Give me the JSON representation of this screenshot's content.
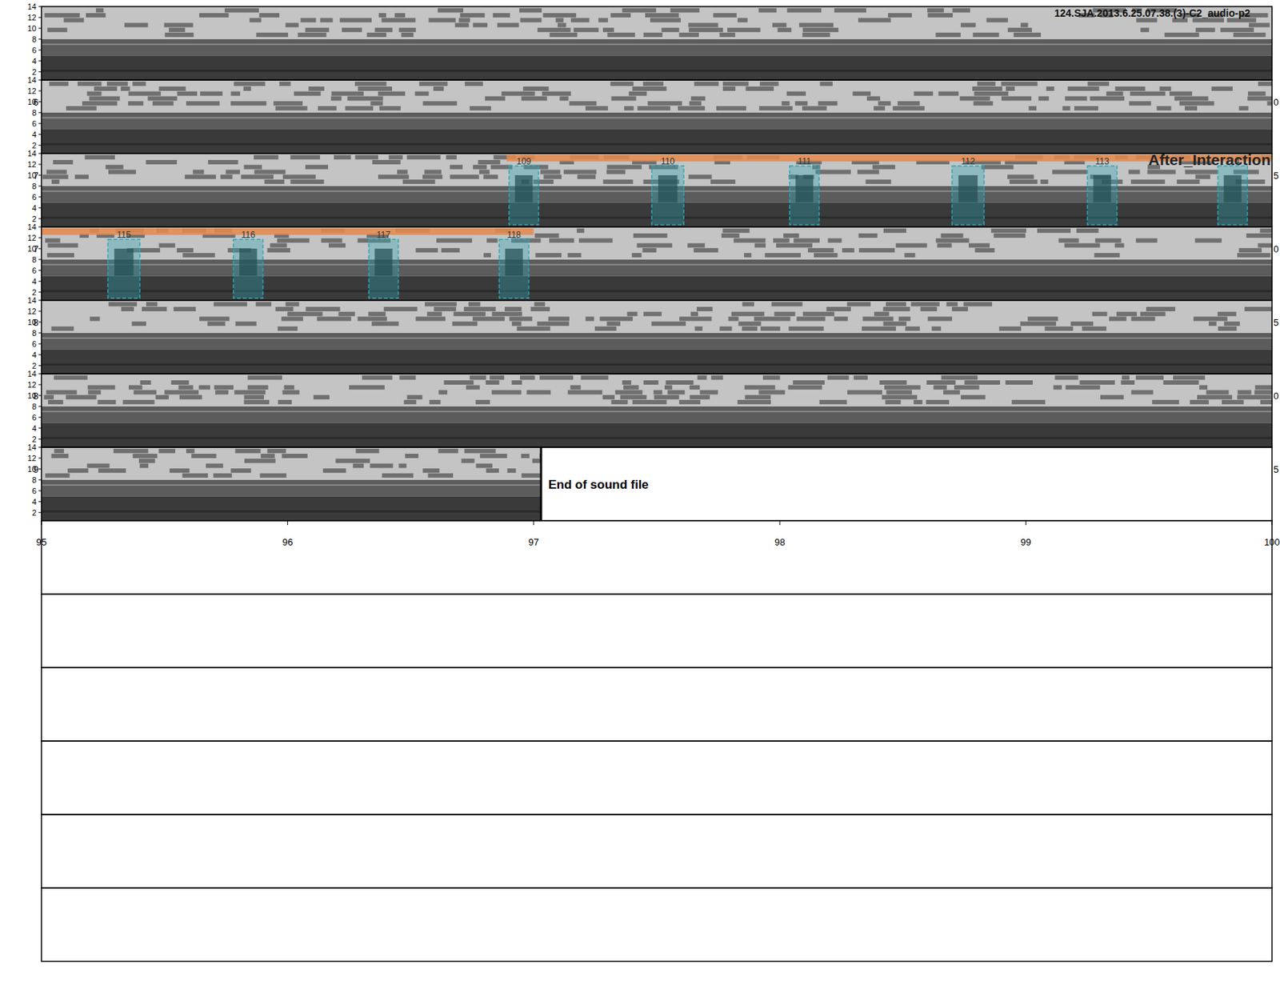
{
  "chart_data": {
    "type": "spectrogram",
    "title": "124.SJA.2013.6.25.07.38.(3)-C2_audio-p2",
    "ylim": [
      0.5,
      14
    ],
    "yticks": [
      2,
      4,
      6,
      8,
      10,
      12,
      14
    ],
    "xlim": [
      95,
      100
    ],
    "xticks": [
      95,
      96,
      97,
      98,
      99,
      100
    ],
    "rows": [
      {
        "xlim": [
          65,
          70
        ],
        "left_label": null,
        "right_label": null
      },
      {
        "xlim": [
          70,
          75
        ],
        "left_label": "6",
        "right_label": "0"
      },
      {
        "xlim": [
          75,
          80
        ],
        "left_label": "7",
        "right_label": "5"
      },
      {
        "xlim": [
          80,
          85
        ],
        "left_label": "7",
        "right_label": "0"
      },
      {
        "xlim": [
          85,
          90
        ],
        "left_label": "8",
        "right_label": "5"
      },
      {
        "xlim": [
          90,
          95
        ],
        "left_label": "8",
        "right_label": "0"
      },
      {
        "xlim": [
          95,
          100
        ],
        "left_label": "9",
        "right_label": "5"
      }
    ],
    "empty_rows": 6,
    "end_of_file": {
      "time": 97.03,
      "label": "End of sound file"
    },
    "annotation": {
      "label": "After_Interaction",
      "start": 76.89,
      "end": 82.0,
      "color": "#e8894a"
    },
    "selections": [
      {
        "id": 109,
        "start": 76.9,
        "end": 77.02,
        "low": 0.9,
        "high": 11.7
      },
      {
        "id": 110,
        "start": 77.48,
        "end": 77.61,
        "low": 0.9,
        "high": 11.7
      },
      {
        "id": 111,
        "start": 78.04,
        "end": 78.16,
        "low": 0.9,
        "high": 11.7
      },
      {
        "id": 112,
        "start": 78.7,
        "end": 78.83,
        "low": 0.9,
        "high": 11.7
      },
      {
        "id": 113,
        "start": 79.25,
        "end": 79.37,
        "low": 0.9,
        "high": 11.7
      },
      {
        "id": 114,
        "start": 79.78,
        "end": 79.9,
        "low": 0.9,
        "high": 11.7
      },
      {
        "id": 115,
        "start": 80.27,
        "end": 80.4,
        "low": 0.9,
        "high": 11.7
      },
      {
        "id": 116,
        "start": 80.78,
        "end": 80.9,
        "low": 0.9,
        "high": 11.7
      },
      {
        "id": 117,
        "start": 81.33,
        "end": 81.45,
        "low": 0.9,
        "high": 11.7
      },
      {
        "id": 118,
        "start": 81.86,
        "end": 81.98,
        "low": 0.9,
        "high": 11.7
      }
    ],
    "color": "#2aa7b8"
  }
}
